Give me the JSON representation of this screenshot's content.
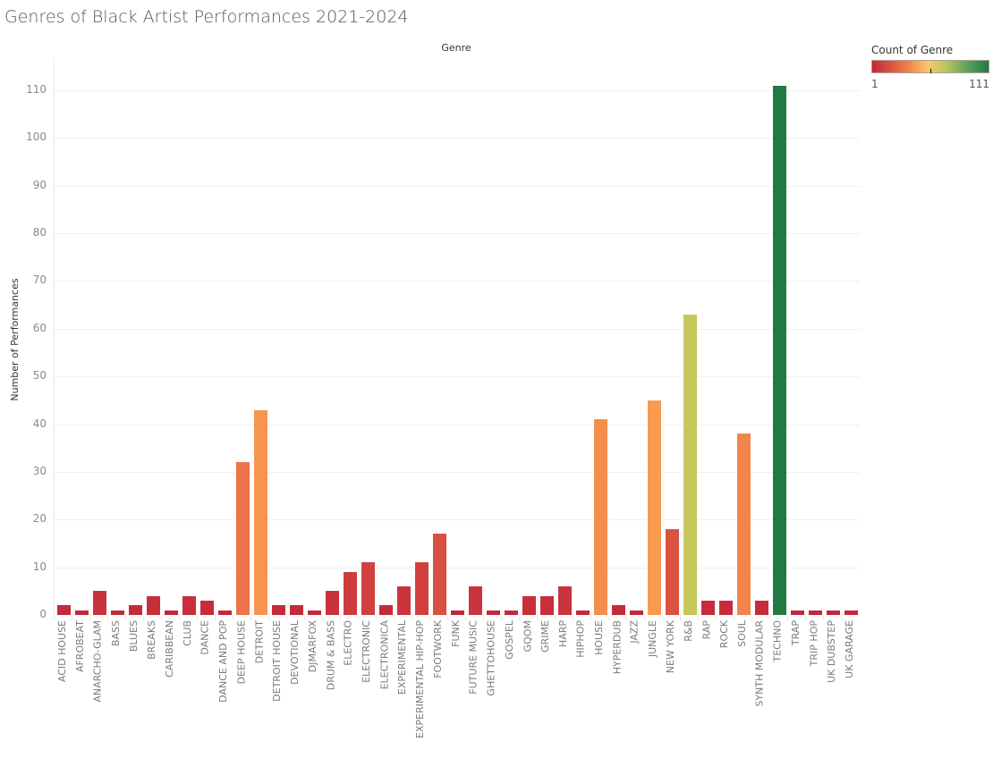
{
  "chart_data": {
    "type": "bar",
    "title": "Genres of Black Artist Performances 2021-2024",
    "column_header": "Genre",
    "xlabel": "Genre",
    "ylabel": "Number of Performances",
    "ylim": [
      0,
      116
    ],
    "yticks": [
      0,
      10,
      20,
      30,
      40,
      50,
      60,
      70,
      80,
      90,
      100,
      110
    ],
    "grid": true,
    "legend": {
      "title": "Count of Genre",
      "min": "1",
      "max": "111",
      "type": "color-gradient",
      "position": "top-right",
      "colors": [
        "#c4273a",
        "#f07c4a",
        "#fdc66a",
        "#b3c45e",
        "#227a43"
      ]
    },
    "categories": [
      "ACID HOUSE",
      "AFROBEAT",
      "ANARCHO-GLAM",
      "BASS",
      "BLUES",
      "BREAKS",
      "CARIBBEAN",
      "CLUB",
      "DANCE",
      "DANCE AND POP",
      "DEEP HOUSE",
      "DETROIT",
      "DETROIT HOUSE",
      "DEVOTIONAL",
      "DJMARFOX",
      "DRUM & BASS",
      "ELECTRO",
      "ELECTRONIC",
      "ELECTRONICA",
      "EXPERIMENTAL",
      "EXPERIMENTAL HIP-HOP",
      "FOOTWORK",
      "FUNK",
      "FUTURE MUSIC",
      "GHETTOHOUSE",
      "GOSPEL",
      "GQOM",
      "GRIME",
      "HARP",
      "HIPHOP",
      "HOUSE",
      "HYPERDUB",
      "JAZZ",
      "JUNGLE",
      "NEW YORK",
      "R&B",
      "RAP",
      "ROCK",
      "SOUL",
      "SYNTH MODULAR",
      "TECHNO",
      "TRAP",
      "TRIP HOP",
      "UK DUBSTEP",
      "UK GARAGE"
    ],
    "values": [
      2,
      1,
      5,
      1,
      2,
      4,
      1,
      4,
      3,
      1,
      32,
      43,
      2,
      2,
      1,
      5,
      9,
      11,
      2,
      6,
      11,
      17,
      1,
      6,
      1,
      1,
      4,
      4,
      6,
      1,
      41,
      2,
      1,
      45,
      18,
      63,
      3,
      3,
      38,
      3,
      111,
      1,
      1,
      1,
      1
    ]
  }
}
